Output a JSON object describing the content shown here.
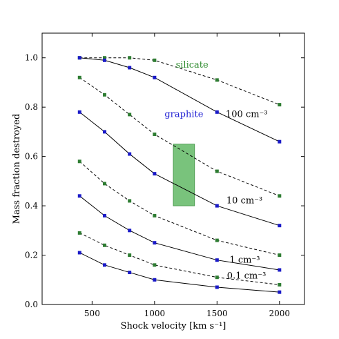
{
  "chart_data": {
    "type": "line",
    "title": "",
    "xlabel": "Shock velocity [km s⁻¹]",
    "ylabel": "Mass fraction destroyed",
    "xlim": [
      100,
      2200
    ],
    "ylim": [
      0,
      1.1
    ],
    "x": [
      400,
      600,
      800,
      1000,
      1500,
      2000
    ],
    "xticks": [
      500,
      1000,
      1500,
      2000
    ],
    "yticks": [
      0.0,
      0.2,
      0.4,
      0.6,
      0.8,
      1.0
    ],
    "xtick_labels": [
      "500",
      "1000",
      "1500",
      "2000"
    ],
    "ytick_labels": [
      "0.0",
      "0.2",
      "0.4",
      "0.6",
      "0.8",
      "1.0"
    ],
    "grid": false,
    "legend": "none",
    "series": [
      {
        "material": "silicate",
        "density": "100 cm⁻³",
        "color": "#2e7d32",
        "linestyle": "dashed",
        "values": [
          1.0,
          1.0,
          1.0,
          0.99,
          0.91,
          0.81
        ]
      },
      {
        "material": "graphite",
        "density": "100 cm⁻³",
        "color": "#1a1ac8",
        "linestyle": "solid",
        "values": [
          1.0,
          0.99,
          0.96,
          0.92,
          0.78,
          0.66
        ]
      },
      {
        "material": "silicate",
        "density": "10 cm⁻³",
        "color": "#2e7d32",
        "linestyle": "dashed",
        "values": [
          0.92,
          0.85,
          0.77,
          0.69,
          0.54,
          0.44
        ]
      },
      {
        "material": "graphite",
        "density": "10 cm⁻³",
        "color": "#1a1ac8",
        "linestyle": "solid",
        "values": [
          0.78,
          0.7,
          0.61,
          0.53,
          0.4,
          0.32
        ]
      },
      {
        "material": "silicate",
        "density": "1 cm⁻³",
        "color": "#2e7d32",
        "linestyle": "dashed",
        "values": [
          0.58,
          0.49,
          0.42,
          0.36,
          0.26,
          0.2
        ]
      },
      {
        "material": "graphite",
        "density": "1 cm⁻³",
        "color": "#1a1ac8",
        "linestyle": "solid",
        "values": [
          0.44,
          0.36,
          0.3,
          0.25,
          0.18,
          0.14
        ]
      },
      {
        "material": "silicate",
        "density": "0.1 cm⁻³",
        "color": "#2e7d32",
        "linestyle": "dashed",
        "values": [
          0.29,
          0.24,
          0.2,
          0.16,
          0.11,
          0.08
        ]
      },
      {
        "material": "graphite",
        "density": "0.1 cm⁻³",
        "color": "#1a1ac8",
        "linestyle": "solid",
        "values": [
          0.21,
          0.16,
          0.13,
          0.1,
          0.07,
          0.05
        ]
      }
    ],
    "shaded_region": {
      "x": [
        1150,
        1320
      ],
      "y": [
        0.4,
        0.65
      ],
      "color": "#4caf50",
      "opacity": 0.75
    },
    "annotations": [
      {
        "text": "silicate",
        "x": 1300,
        "y": 0.96,
        "color": "#2e8b2e",
        "anchor": "middle"
      },
      {
        "text": "graphite",
        "x": 1235,
        "y": 0.76,
        "color": "#2323d4",
        "anchor": "middle"
      },
      {
        "text": "100 cm⁻³",
        "x": 1570,
        "y": 0.76,
        "color": "#000000",
        "anchor": "start"
      },
      {
        "text": "10 cm⁻³",
        "x": 1575,
        "y": 0.41,
        "color": "#000000",
        "anchor": "start"
      },
      {
        "text": "1 cm⁻³",
        "x": 1600,
        "y": 0.17,
        "color": "#000000",
        "anchor": "start"
      },
      {
        "text": "0.1 cm⁻³",
        "x": 1580,
        "y": 0.105,
        "color": "#000000",
        "anchor": "start"
      }
    ]
  }
}
